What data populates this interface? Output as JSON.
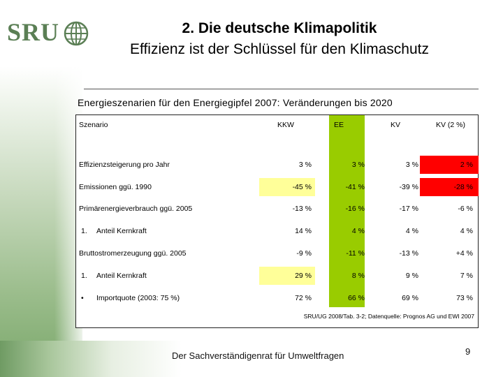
{
  "logo": {
    "text": "SRU"
  },
  "title": {
    "line1": "2. Die deutsche Klimapolitik",
    "line2": "Effizienz ist der Schlüssel für den Klimaschutz"
  },
  "subtitle": "Energieszenarien für den Energiegipfel 2007: Veränderungen bis 2020",
  "table": {
    "headers": [
      "Szenario",
      "KKW",
      "EE",
      "KV",
      "KV (2 %)"
    ],
    "rows": [
      {
        "label": "Effizienzsteigerung pro Jahr",
        "bullet": "",
        "values": [
          "3 %",
          "3 %",
          "3 %",
          "2 %"
        ]
      },
      {
        "label": "Emissionen ggü. 1990",
        "bullet": "",
        "values": [
          "-45 %",
          "-41 %",
          "-39 %",
          "-28 %"
        ]
      },
      {
        "label": "Primärenergieverbrauch ggü. 2005",
        "bullet": "",
        "values": [
          "-13 %",
          "-16 %",
          "-17 %",
          "-6 %"
        ]
      },
      {
        "label": "Anteil Kernkraft",
        "bullet": "1.",
        "values": [
          "14 %",
          "4 %",
          "4 %",
          "4 %"
        ]
      },
      {
        "label": "Bruttostromerzeugung ggü. 2005",
        "bullet": "",
        "values": [
          "-9 %",
          "-11 %",
          "-13 %",
          "+4 %"
        ]
      },
      {
        "label": "Anteil Kernkraft",
        "bullet": "1.",
        "values": [
          "29 %",
          "8 %",
          "9 %",
          "7 %"
        ]
      },
      {
        "label": "Importquote (2003: 75 %)",
        "bullet": "•",
        "values": [
          "72 %",
          "66 %",
          "69 %",
          "73 %"
        ]
      }
    ],
    "source": "SRU/UG 2008/Tab. 3-2; Datenquelle: Prognos AG und EWI 2007"
  },
  "colors": {
    "ee_green": "#99cc00",
    "red": "#ff0000",
    "light_yellow": "#ffff99"
  },
  "footer": {
    "text": "Der Sachverständigenrat für Umweltfragen",
    "page": "9"
  }
}
